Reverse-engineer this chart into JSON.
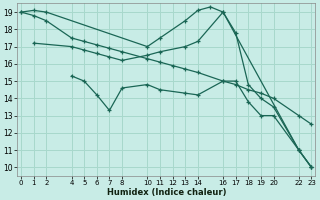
{
  "xlabel": "Humidex (Indice chaleur)",
  "background_color": "#c8ece6",
  "grid_color": "#a8d8cc",
  "line_color": "#1a6655",
  "spine_color": "#888888",
  "ylim": [
    9.5,
    19.5
  ],
  "xlim": [
    -0.3,
    23.3
  ],
  "yticks": [
    10,
    11,
    12,
    13,
    14,
    15,
    16,
    17,
    18,
    19
  ],
  "xtick_positions": [
    0,
    1,
    2,
    4,
    5,
    6,
    7,
    8,
    10,
    11,
    12,
    13,
    14,
    16,
    17,
    18,
    19,
    20,
    22,
    23
  ],
  "xtick_labels": [
    "0",
    "1",
    "2",
    "4",
    "5",
    "6",
    "7",
    "8",
    "10",
    "11",
    "12",
    "13",
    "14",
    "16",
    "17",
    "18",
    "19",
    "20",
    "22",
    "23"
  ],
  "series": [
    {
      "x": [
        0,
        1,
        2,
        10,
        11,
        13,
        14,
        15,
        16,
        22,
        23
      ],
      "y": [
        19,
        19.1,
        19.0,
        17.0,
        17.5,
        18.5,
        19.1,
        19.3,
        19.0,
        11.0,
        10.0
      ]
    },
    {
      "x": [
        1,
        4,
        5,
        6,
        7,
        8,
        10,
        11,
        13,
        14,
        16,
        17,
        18,
        19,
        20,
        22,
        23
      ],
      "y": [
        17.2,
        17.0,
        16.8,
        16.6,
        16.4,
        16.2,
        16.5,
        16.7,
        17.0,
        17.3,
        19.0,
        17.8,
        14.8,
        14.0,
        13.5,
        11.0,
        10.0
      ]
    },
    {
      "x": [
        0,
        1,
        2,
        4,
        5,
        6,
        7,
        8,
        10,
        11,
        12,
        13,
        14,
        16,
        17,
        18,
        19,
        20,
        22,
        23
      ],
      "y": [
        19.0,
        18.8,
        18.5,
        17.5,
        17.3,
        17.1,
        16.9,
        16.7,
        16.3,
        16.1,
        15.9,
        15.7,
        15.5,
        15.0,
        14.8,
        14.5,
        14.3,
        14.0,
        13.0,
        12.5
      ]
    },
    {
      "x": [
        4,
        5,
        6,
        7,
        8,
        10,
        11,
        13,
        14,
        16,
        17,
        18,
        19,
        20,
        22,
        23
      ],
      "y": [
        15.3,
        15.0,
        14.2,
        13.3,
        14.6,
        14.8,
        14.5,
        14.3,
        14.2,
        15.0,
        15.0,
        13.8,
        13.0,
        13.0,
        11.0,
        10.0
      ]
    }
  ]
}
